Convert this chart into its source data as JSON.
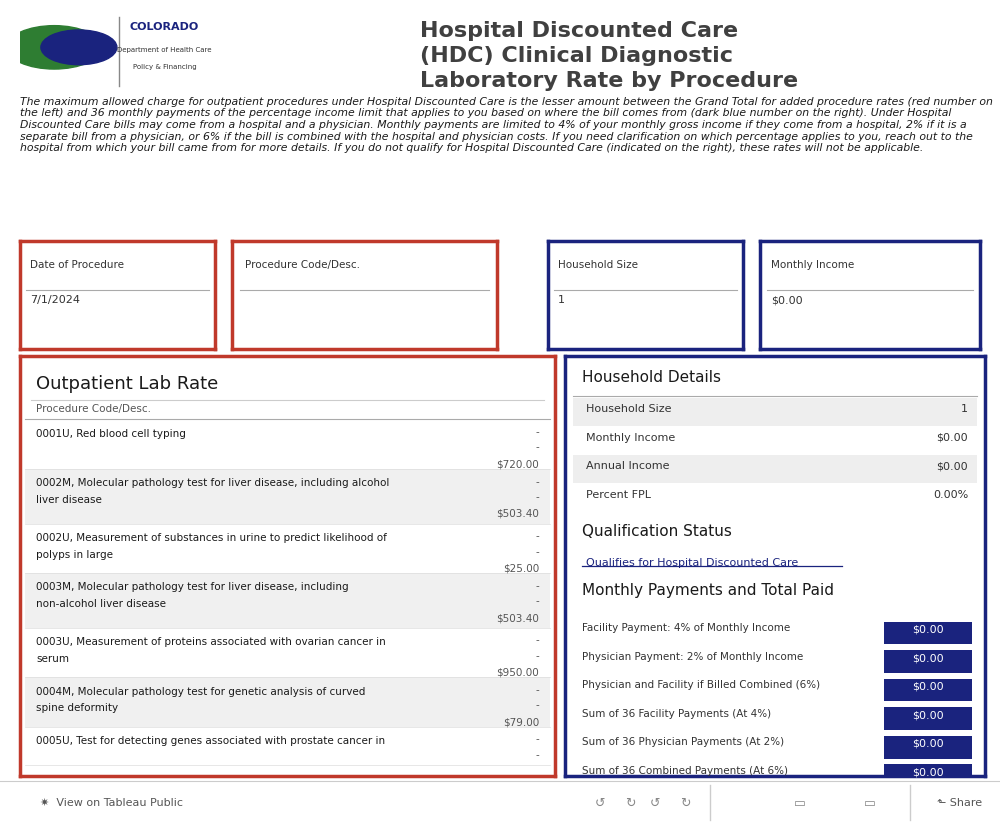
{
  "title": "Hospital Discounted Care\n(HDC) Clinical Diagnostic\nLaboratory Rate by Procedure",
  "bg_color": "#ffffff",
  "title_color": "#404040",
  "dark_red": "#8B0000",
  "dark_blue": "#1a237e",
  "red_border": "#c0392b",
  "navy_border": "#1a237e",
  "description_text": "The maximum allowed charge for outpatient procedures under Hospital Discounted Care is the lesser amount between the Grand Total for added procedure rates (red number on the left) and 36 monthly payments of the percentage income limit that applies to you based on where the bill comes from (dark blue number on the right). Under Hospital Discounted Care bills may come from a hospital and a physician. Monthly payments are limited to 4% of your monthly gross income if they come from a hospital, 2% if it is a separate bill from a physician, or 6% if the bill is combined with the hospital and physician costs. If you need clarification on which percentage applies to you, reach out to the hospital from which your bill came from for more details. If you do not qualify for Hospital Discounted Care (indicated on the right), these rates will not be applicable.",
  "input_fields": [
    {
      "label": "Date of Procedure",
      "value": "7/1/2024",
      "border_color": "#c0392b"
    },
    {
      "label": "Procedure Code/Desc.",
      "value": "",
      "border_color": "#c0392b"
    },
    {
      "label": "Household Size",
      "value": "1",
      "border_color": "#1a237e"
    },
    {
      "label": "Monthly Income",
      "value": "$0.00",
      "border_color": "#1a237e"
    }
  ],
  "lab_rate_title": "Outpatient Lab Rate",
  "lab_rate_header": "Procedure Code/Desc.",
  "lab_procedures": [
    {
      "code": "0001U, Red blood cell typing",
      "value1": "-",
      "value2": "-",
      "price": "$720.00",
      "shaded": false
    },
    {
      "code": "0002M, Molecular pathology test for liver disease, including alcohol\nliver disease",
      "value1": "-",
      "value2": "-",
      "price": "$503.40",
      "shaded": true
    },
    {
      "code": "0002U, Measurement of substances in urine to predict likelihood of\npolyps in large",
      "value1": "-",
      "value2": "-",
      "price": "$25.00",
      "shaded": false
    },
    {
      "code": "0003M, Molecular pathology test for liver disease, including\nnon-alcohol liver disease",
      "value1": "-",
      "value2": "-",
      "price": "$503.40",
      "shaded": true
    },
    {
      "code": "0003U, Measurement of proteins associated with ovarian cancer in\nserum",
      "value1": "-",
      "value2": "-",
      "price": "$950.00",
      "shaded": false
    },
    {
      "code": "0004M, Molecular pathology test for genetic analysis of curved\nspine deformity",
      "value1": "-",
      "value2": "-",
      "price": "$79.00",
      "shaded": true
    },
    {
      "code": "0005U, Test for detecting genes associated with prostate cancer in",
      "value1": "-",
      "value2": "-",
      "price": "",
      "shaded": false
    }
  ],
  "household_title": "Household Details",
  "household_details": [
    {
      "label": "Household Size",
      "value": "1"
    },
    {
      "label": "Monthly Income",
      "value": "$0.00"
    },
    {
      "label": "Annual Income",
      "value": "$0.00"
    },
    {
      "label": "Percent FPL",
      "value": "0.00%"
    }
  ],
  "qualification_title": "Qualification Status",
  "qualification_text": "Qualifies for Hospital Discounted Care",
  "payments_title": "Monthly Payments and Total Paid",
  "payment_items": [
    {
      "label": "Facility Payment: 4% of Monthly Income",
      "value": "$0.00"
    },
    {
      "label": "Physician Payment: 2% of Monthly Income",
      "value": "$0.00"
    },
    {
      "label": "Physician and Facility if Billed Combined (6%)",
      "value": "$0.00"
    },
    {
      "label": "Sum of 36 Facility Payments (At 4%)",
      "value": "$0.00"
    },
    {
      "label": "Sum of 36 Physician Payments (At 2%)",
      "value": "$0.00"
    },
    {
      "label": "Sum of 36 Combined Payments (At 6%)",
      "value": "$0.00"
    }
  ],
  "payment_bg_color": "#1a237e",
  "payment_text_color": "#ffffff",
  "shaded_row_color": "#f0f0f0",
  "footer_text": "✷  View on Tableau Public"
}
